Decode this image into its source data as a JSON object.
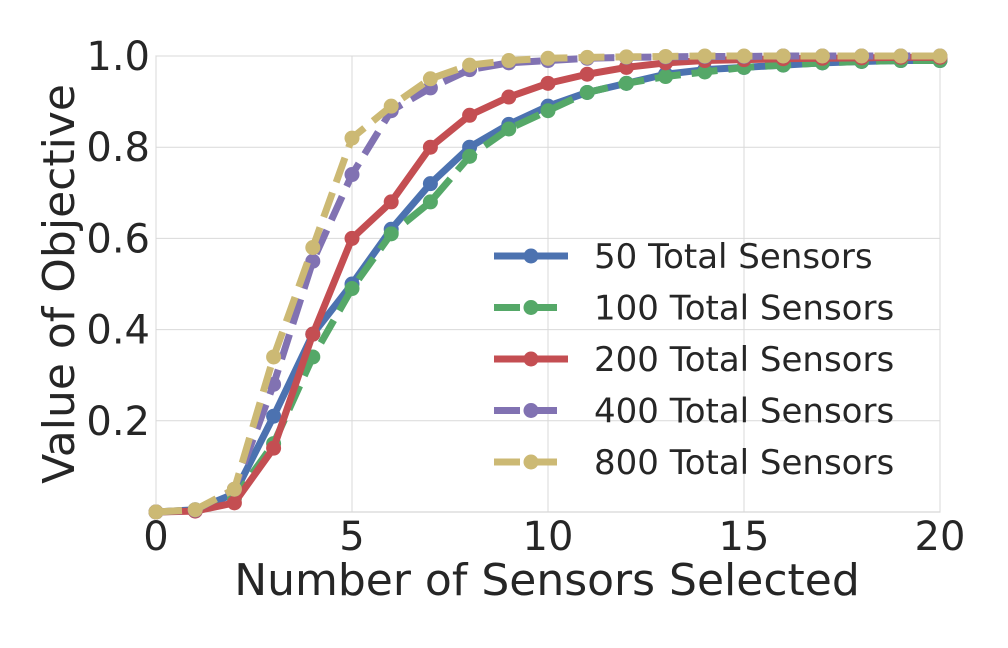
{
  "chart_data": {
    "type": "line",
    "title": "",
    "xlabel": "Number of Sensors Selected",
    "ylabel": "Value of Objective",
    "xlim": [
      0,
      20
    ],
    "ylim": [
      0,
      1.0
    ],
    "xticks": [
      0,
      5,
      10,
      15,
      20
    ],
    "yticks": [
      0.2,
      0.4,
      0.6,
      0.8,
      1.0
    ],
    "xtick_labels": [
      "0",
      "5",
      "10",
      "15",
      "20"
    ],
    "ytick_labels": [
      "0.2",
      "0.4",
      "0.6",
      "0.8",
      "1.0"
    ],
    "grid": true,
    "legend_position": "center-right",
    "x": [
      0,
      1,
      2,
      3,
      4,
      5,
      6,
      7,
      8,
      9,
      10,
      11,
      12,
      13,
      14,
      15,
      16,
      17,
      18,
      19,
      20
    ],
    "series": [
      {
        "name": "50 Total Sensors",
        "color": "#4c72b0",
        "style": "solid",
        "values": [
          0.0,
          0.005,
          0.04,
          0.21,
          0.39,
          0.5,
          0.62,
          0.72,
          0.8,
          0.85,
          0.89,
          0.92,
          0.94,
          0.96,
          0.97,
          0.975,
          0.98,
          0.985,
          0.988,
          0.99,
          0.99
        ]
      },
      {
        "name": "100 Total Sensors",
        "color": "#55a868",
        "style": "dashed",
        "values": [
          0.0,
          0.003,
          0.03,
          0.15,
          0.34,
          0.49,
          0.61,
          0.68,
          0.78,
          0.84,
          0.88,
          0.92,
          0.94,
          0.955,
          0.965,
          0.975,
          0.98,
          0.985,
          0.988,
          0.99,
          0.99
        ]
      },
      {
        "name": "200 Total Sensors",
        "color": "#c44e52",
        "style": "solid",
        "values": [
          0.0,
          0.002,
          0.02,
          0.14,
          0.39,
          0.6,
          0.68,
          0.8,
          0.87,
          0.91,
          0.94,
          0.96,
          0.975,
          0.985,
          0.99,
          0.992,
          0.994,
          0.995,
          0.996,
          0.997,
          0.997
        ]
      },
      {
        "name": "400 Total Sensors",
        "color": "#8172b2",
        "style": "dashed",
        "values": [
          0.0,
          0.004,
          0.05,
          0.28,
          0.55,
          0.74,
          0.88,
          0.93,
          0.97,
          0.985,
          0.99,
          0.995,
          0.997,
          0.998,
          0.999,
          0.999,
          1.0,
          1.0,
          1.0,
          1.0,
          1.0
        ]
      },
      {
        "name": "800 Total Sensors",
        "color": "#ccb974",
        "style": "dashed",
        "values": [
          0.0,
          0.005,
          0.05,
          0.34,
          0.58,
          0.82,
          0.89,
          0.95,
          0.98,
          0.99,
          0.995,
          0.997,
          0.998,
          0.999,
          1.0,
          1.0,
          1.0,
          1.0,
          1.0,
          1.0,
          1.0
        ]
      }
    ]
  }
}
